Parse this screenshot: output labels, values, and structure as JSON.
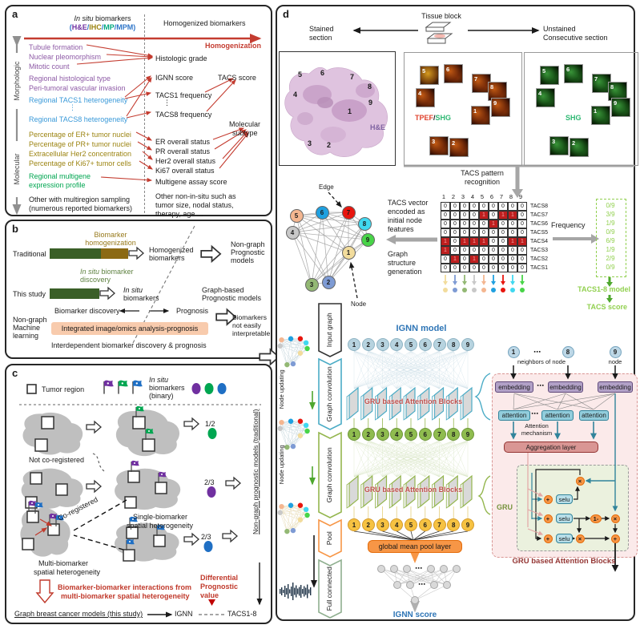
{
  "panel_a": {
    "label": "a",
    "header_left_italic": "In situ",
    "header_left_rest": " biomarkers",
    "modalities": [
      {
        "t": "(",
        "c": "#2E75C8"
      },
      {
        "t": "H&E",
        "c": "#7030A0"
      },
      {
        "t": "/",
        "c": "#2E75C8"
      },
      {
        "t": "IHC",
        "c": "#9C8412"
      },
      {
        "t": "/",
        "c": "#2E75C8"
      },
      {
        "t": "MP",
        "c": "#00A87E"
      },
      {
        "t": "/",
        "c": "#2E75C8"
      },
      {
        "t": "MPM",
        "c": "#2E75C8"
      },
      {
        "t": ")",
        "c": "#2E75C8"
      }
    ],
    "header_right": "Homogenized biomarkers",
    "homogenization": "Homogenization",
    "axis_top": "Morphologic",
    "axis_bottom": "Molecular",
    "left_items": [
      {
        "text": "Tubule formation",
        "color": "#8E5BA6"
      },
      {
        "text": "Nuclear pleomorphism",
        "color": "#8E5BA6"
      },
      {
        "text": "Mitotic count",
        "color": "#8E5BA6"
      },
      {
        "text": "Regional histological type",
        "color": "#8E5BA6"
      },
      {
        "text": "Peri-tumoral vascular invasion",
        "color": "#8E5BA6"
      },
      {
        "text": "Regional TACS1 heterogeneity",
        "color": "#3B9AD9"
      },
      {
        "text": "⋮",
        "color": "#3B9AD9"
      },
      {
        "text": "Regional TACS8 heterogeneity",
        "color": "#3B9AD9"
      },
      {
        "text": "Percentage of ER+ tumor nuclei",
        "color": "#9C8412"
      },
      {
        "text": "Percentage of PR+ tumor nuclei",
        "color": "#9C8412"
      },
      {
        "text": "Extracellular Her2 concentration",
        "color": "#9C8412"
      },
      {
        "text": "Percentage of Ki67+ tumor cells",
        "color": "#9C8412"
      },
      {
        "text": "Regional multigene",
        "color": "#00A651"
      },
      {
        "text": "expression profile",
        "color": "#00A651"
      },
      {
        "text": "Other with multiregion sampling",
        "color": "#1a1a1a"
      },
      {
        "text": "(numerous reported biomarkers)",
        "color": "#1a1a1a"
      }
    ],
    "right_items": [
      {
        "text": "Histologic grade"
      },
      {
        "text": "IGNN score"
      },
      {
        "text": "TACS score"
      },
      {
        "text": "TACS1 frequency"
      },
      {
        "text": "⋮"
      },
      {
        "text": "TACS8 frequency"
      },
      {
        "text": "Molecular"
      },
      {
        "text": "subtype"
      },
      {
        "text": "ER overall status"
      },
      {
        "text": "PR overall status"
      },
      {
        "text": "Her2 overall status"
      },
      {
        "text": "Ki67 overall status"
      },
      {
        "text": "Multigene assay score"
      },
      {
        "text": "Other non-in-situ such as"
      },
      {
        "text": "tumor size, nodal status,"
      },
      {
        "text": "therapy, age ..."
      }
    ]
  },
  "panel_b": {
    "label": "b",
    "traditional": "Traditional",
    "homog_1": "Biomarker",
    "homog_2": "homogenization",
    "out1_1": "Homogenized",
    "out1_2": "biomarkers",
    "model1_1": "Non-graph",
    "model1_2": "Prognostic",
    "model1_3": "models",
    "study": "This study",
    "disc_1a": "In situ",
    "disc_1b": " biomarker",
    "disc_2": "discovery",
    "out2_1": "In situ",
    "out2_2": "biomarkers",
    "model2_1": "Graph-based",
    "model2_2": "Prognostic models",
    "mid_left": "Biomarker discovery",
    "mid_right": "Prognosis",
    "ml_1": "Non-graph",
    "ml_2": "Machine",
    "ml_3": "learning",
    "integrated": "Integrated image/omics analysis-prognosis",
    "out3_1": "Biomarkers",
    "out3_2": "not easily",
    "out3_3": "interpretable",
    "footer": "Interdependent biomarker discovery & prognosis"
  },
  "panel_c": {
    "label": "c",
    "tumor_region": "Tumor region",
    "insitu_1": "In situ",
    "insitu_2": "biomarkers",
    "insitu_3": "(binary)",
    "not_coreg": "Not co-registered",
    "coreg": "Co-registered",
    "single_1": "Single-biomarker",
    "single_2": "spatial heterogeneity",
    "multi_1": "Multi-biomarker",
    "multi_2": "spatial heterogeneity",
    "ratio_green": "1/2",
    "ratio_purple": "2/3",
    "ratio_blue": "2/3",
    "inter_1": "Biomarker-biomarker interactions from",
    "inter_2": "multi-biomarker spatial heterogeneity",
    "diff_1": "Differential",
    "diff_2": "Prognostic",
    "diff_3": "value",
    "axis": "Non-graph prognostic models (traditional)",
    "bottom": "Graph breast cancer models (this study)",
    "ignn": "IGNN",
    "tacs18": "TACS1-8",
    "colors": {
      "purple": "#7030A0",
      "green": "#00A651",
      "blue": "#1F6FC4"
    }
  },
  "panel_d": {
    "label": "d",
    "tissue_block": "Tissue block",
    "stained_1": "Stained",
    "stained_2": "section",
    "unstained_1": "Unstained",
    "unstained_2": "Consecutive section",
    "he_label": "H&E",
    "tpef": "TPEF",
    "slash": "/",
    "shg": "SHG",
    "shg_label": "SHG",
    "section_numbers": [
      "1",
      "2",
      "3",
      "4",
      "5",
      "6",
      "7",
      "8",
      "9"
    ],
    "tacs_recog_1": "TACS pattern",
    "tacs_recog_2": "recognition",
    "edge_label": "Edge",
    "node_label": "Node",
    "enc_lines": [
      "TACS vector",
      "encoded as",
      "initial node",
      "features"
    ],
    "gen_lines": [
      "Graph",
      "structure",
      "generation"
    ],
    "matrix": {
      "col_headers": [
        "1",
        "2",
        "3",
        "4",
        "5",
        "6",
        "7",
        "8",
        "9"
      ],
      "row_labels": [
        "TACS8",
        "TACS7",
        "TACS6",
        "TACS5",
        "TACS4",
        "TACS3",
        "TACS2",
        "TACS1"
      ],
      "values": [
        [
          0,
          0,
          0,
          0,
          0,
          0,
          0,
          0,
          0
        ],
        [
          0,
          0,
          0,
          0,
          1,
          0,
          1,
          1,
          0
        ],
        [
          0,
          0,
          0,
          0,
          0,
          1,
          0,
          0,
          0
        ],
        [
          0,
          0,
          0,
          0,
          0,
          0,
          0,
          0,
          0
        ],
        [
          1,
          0,
          1,
          1,
          1,
          0,
          0,
          1,
          1
        ],
        [
          1,
          0,
          0,
          0,
          0,
          0,
          0,
          0,
          0
        ],
        [
          0,
          1,
          0,
          1,
          0,
          0,
          0,
          0,
          0
        ],
        [
          0,
          0,
          0,
          0,
          0,
          0,
          0,
          0,
          0
        ]
      ],
      "zero": "0",
      "one": "1"
    },
    "frequency_label": "Frequency",
    "frequencies": [
      "0/9",
      "3/9",
      "1/9",
      "0/9",
      "6/9",
      "1/9",
      "2/9",
      "0/9"
    ],
    "tacs_model": "TACS1-8 model",
    "tacs_score": "TACS score",
    "stages": [
      {
        "label": "Input graph",
        "color": "#333333"
      },
      {
        "label": "Graph convolution",
        "color": "#4BACC6"
      },
      {
        "label": "Graph convolution",
        "color": "#94B64E"
      },
      {
        "label": "Pool",
        "color": "#F79646"
      },
      {
        "label": "Full connected",
        "color": "#8FAF8F"
      }
    ],
    "node_updating_1": "Node",
    "node_updating_2": "updating",
    "ignn_model": "IGNN model",
    "gru_blocks": "GRU based Attention Blocks",
    "pool_layer": "global mean pool layer",
    "ignn_score": "IGNN score",
    "detail": {
      "top_nodes": [
        "1",
        "8",
        "9"
      ],
      "ellipsis": "⋯",
      "neighbors": "neighbors of node",
      "node": "node",
      "embedding": "embedding",
      "attention": "attention",
      "attn_mech_1": "Attention",
      "attn_mech_2": "mechanism",
      "aggregation": "Aggregation layer",
      "gru": "GRU",
      "selu": "selu",
      "one_minus": "1-",
      "times": "×",
      "plus": "+",
      "caption": "GRU based Attention Blocks",
      "brace": "{"
    },
    "node_colors": {
      "1": "#F2DC9C",
      "2": "#7E9BD4",
      "3": "#93B874",
      "4": "#C8C8C8",
      "5": "#F4B690",
      "6": "#1FA0E0",
      "7": "#E8150D",
      "8": "#40D8F0",
      "9": "#48D448"
    },
    "circle_numbers": [
      "1",
      "2",
      "3",
      "4",
      "5",
      "6",
      "7",
      "8",
      "9"
    ],
    "accent": {
      "red_text": "#C0392B",
      "green": "#92D050",
      "blue": "#2E75B6",
      "gru_caption": "#953735"
    }
  }
}
